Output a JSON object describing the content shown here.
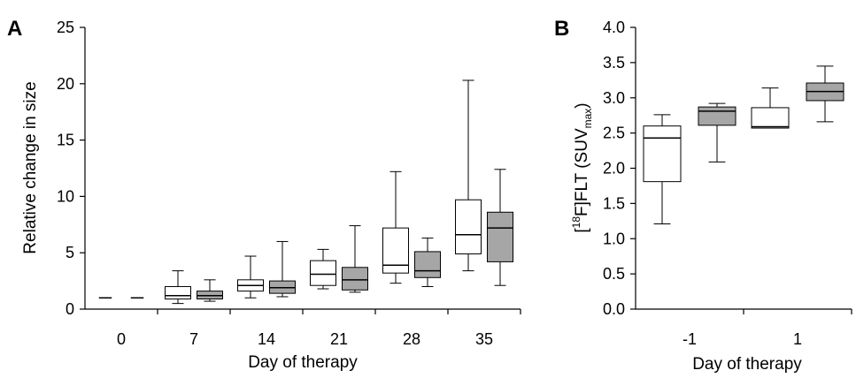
{
  "chart_data": [
    {
      "panel_label": "A",
      "type": "box",
      "xlabel": "Day of therapy",
      "ylabel": "Relative change in size",
      "ylim": [
        0,
        25
      ],
      "yticks": [
        "0",
        "5",
        "10",
        "15",
        "20",
        "25"
      ],
      "categories": [
        "0",
        "7",
        "14",
        "21",
        "28",
        "35"
      ],
      "series": [
        {
          "fill": "#ffffff",
          "boxes": [
            {
              "category": "0",
              "min": 1.0,
              "q1": 1.0,
              "median": 1.0,
              "q3": 1.0,
              "max": 1.0
            },
            {
              "category": "7",
              "min": 0.5,
              "q1": 0.9,
              "median": 1.2,
              "q3": 2.0,
              "max": 3.4
            },
            {
              "category": "14",
              "min": 1.0,
              "q1": 1.6,
              "median": 2.1,
              "q3": 2.6,
              "max": 4.7
            },
            {
              "category": "21",
              "min": 1.8,
              "q1": 2.1,
              "median": 3.1,
              "q3": 4.3,
              "max": 5.3
            },
            {
              "category": "28",
              "min": 2.3,
              "q1": 3.2,
              "median": 3.9,
              "q3": 7.2,
              "max": 12.2
            },
            {
              "category": "35",
              "min": 3.4,
              "q1": 4.9,
              "median": 6.6,
              "q3": 9.7,
              "max": 20.3
            }
          ]
        },
        {
          "fill": "#a6a6a6",
          "boxes": [
            {
              "category": "0",
              "min": 1.0,
              "q1": 1.0,
              "median": 1.0,
              "q3": 1.0,
              "max": 1.0
            },
            {
              "category": "7",
              "min": 0.7,
              "q1": 0.9,
              "median": 1.2,
              "q3": 1.6,
              "max": 2.6
            },
            {
              "category": "14",
              "min": 1.1,
              "q1": 1.4,
              "median": 1.9,
              "q3": 2.5,
              "max": 6.0
            },
            {
              "category": "21",
              "min": 1.5,
              "q1": 1.7,
              "median": 2.6,
              "q3": 3.7,
              "max": 7.4
            },
            {
              "category": "28",
              "min": 2.0,
              "q1": 2.8,
              "median": 3.4,
              "q3": 5.1,
              "max": 6.3
            },
            {
              "category": "35",
              "min": 2.1,
              "q1": 4.2,
              "median": 7.2,
              "q3": 8.6,
              "max": 12.4
            }
          ]
        }
      ]
    },
    {
      "panel_label": "B",
      "type": "box",
      "xlabel": "Day of therapy",
      "ylabel_parts": [
        "[",
        "18",
        "F]FLT (SUV",
        "max",
        ")"
      ],
      "ylim": [
        0,
        4
      ],
      "yticks": [
        "0.0",
        "0.5",
        "1.0",
        "1.5",
        "2.0",
        "2.5",
        "3.0",
        "3.5",
        "4.0"
      ],
      "categories": [
        "-1",
        "1"
      ],
      "series": [
        {
          "fill": "#ffffff",
          "boxes": [
            {
              "category": "-1",
              "min": 1.21,
              "q1": 1.81,
              "median": 2.43,
              "q3": 2.6,
              "max": 2.76
            },
            {
              "category": "1",
              "min": 2.57,
              "q1": 2.57,
              "median": 2.59,
              "q3": 2.86,
              "max": 3.14
            }
          ]
        },
        {
          "fill": "#a6a6a6",
          "boxes": [
            {
              "category": "-1",
              "min": 2.09,
              "q1": 2.61,
              "median": 2.81,
              "q3": 2.87,
              "max": 2.92
            },
            {
              "category": "1",
              "min": 2.66,
              "q1": 2.96,
              "median": 3.09,
              "q3": 3.21,
              "max": 3.45
            }
          ]
        }
      ]
    }
  ]
}
